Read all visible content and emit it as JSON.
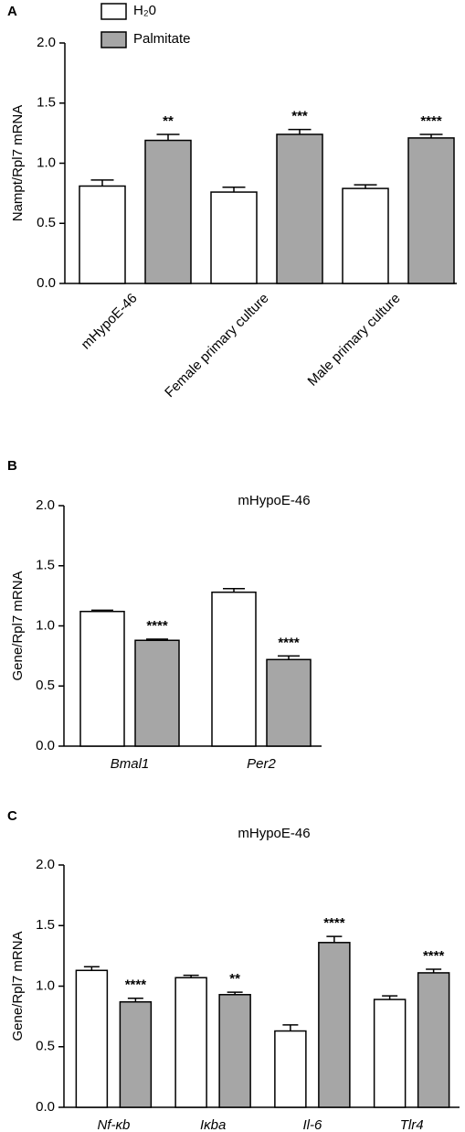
{
  "chart_data": [
    {
      "type": "bar",
      "panel_label": "A",
      "ylabel": "Nampt/Rpl7 mRNA",
      "categories": [
        "mHypoE-46",
        "Female primary culture",
        "Male primary culture"
      ],
      "series": [
        {
          "name": "H₂0",
          "color": "#ffffff",
          "values": [
            0.81,
            0.76,
            0.79
          ],
          "errors": [
            0.05,
            0.04,
            0.03
          ]
        },
        {
          "name": "Palmitate",
          "color": "#a6a6a6",
          "values": [
            1.19,
            1.24,
            1.21
          ],
          "errors": [
            0.05,
            0.04,
            0.03
          ]
        }
      ],
      "annotations": [
        "**",
        "***",
        "****"
      ],
      "ylim": [
        0,
        2
      ],
      "yticks": [
        {
          "value": 0,
          "label": "0.0"
        },
        0.5,
        {
          "value": 1,
          "label": "1.0"
        },
        1.5,
        {
          "value": 2,
          "label": "2.0"
        }
      ]
    },
    {
      "type": "bar",
      "panel_label": "B",
      "title": "mHypoE-46",
      "ylabel": "Gene/Rpl7 mRNA",
      "categories": [
        "Bmal1",
        "Per2"
      ],
      "series": [
        {
          "color": "#ffffff",
          "values": [
            1.12,
            1.28
          ],
          "errors": [
            0.01,
            0.03
          ]
        },
        {
          "color": "#a6a6a6",
          "values": [
            0.88,
            0.72
          ],
          "errors": [
            0.01,
            0.03
          ]
        }
      ],
      "annotations": [
        "****",
        "****"
      ],
      "ylim": [
        0,
        2
      ],
      "yticks": [
        {
          "value": 0,
          "label": "0.0"
        },
        0.5,
        {
          "value": 1,
          "label": "1.0"
        },
        1.5,
        {
          "value": 2,
          "label": "2.0"
        }
      ]
    },
    {
      "type": "bar",
      "panel_label": "C",
      "title": "mHypoE-46",
      "ylabel": "Gene/Rpl7 mRNA",
      "categories": [
        "Nf-κb",
        "Iκba",
        "Il-6",
        "Tlr4"
      ],
      "series": [
        {
          "color": "#ffffff",
          "values": [
            1.13,
            1.07,
            0.63,
            0.89
          ],
          "errors": [
            0.03,
            0.02,
            0.05,
            0.03
          ]
        },
        {
          "color": "#a6a6a6",
          "values": [
            0.87,
            0.93,
            1.36,
            1.11
          ],
          "errors": [
            0.03,
            0.02,
            0.05,
            0.03
          ]
        }
      ],
      "annotations": [
        "****",
        "**",
        "****",
        "****"
      ],
      "ylim": [
        0,
        2
      ],
      "yticks": [
        {
          "value": 0,
          "label": "0.0"
        },
        0.5,
        {
          "value": 1,
          "label": "1.0"
        },
        1.5,
        {
          "value": 2,
          "label": "2.0"
        }
      ]
    }
  ]
}
